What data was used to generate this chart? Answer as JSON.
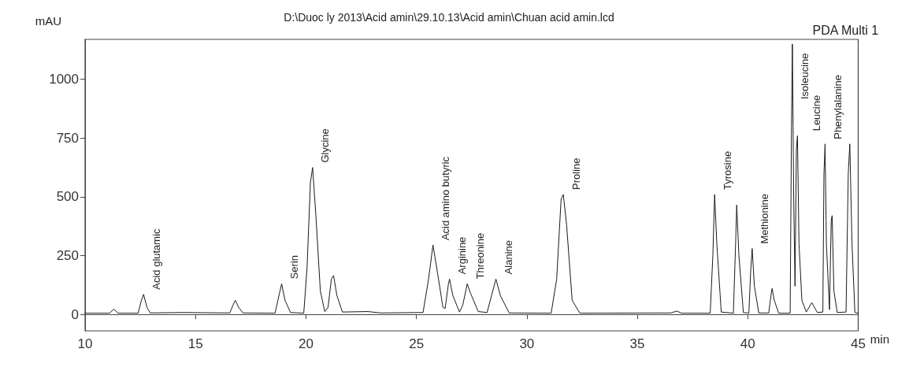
{
  "chart_data": {
    "type": "line",
    "title": "D:\\Duoc ly 2013\\Acid amin\\29.10.13\\Acid amin\\Chuan acid amin.lcd",
    "xlabel": "min",
    "ylabel": "mAU",
    "xlim": [
      10,
      45
    ],
    "xticks": [
      10,
      15,
      20,
      25,
      30,
      35,
      40,
      45
    ],
    "ylim": [
      -70,
      1170
    ],
    "yticks": [
      0,
      250,
      500,
      750,
      1000
    ],
    "marker": "none",
    "line_style": "solid",
    "series": [
      {
        "color": "#1a1a1a",
        "x": [
          10,
          11.1,
          11.3,
          11.5,
          12.4,
          12.55,
          12.65,
          12.8,
          12.95,
          14.4,
          16.55,
          16.7,
          16.8,
          16.95,
          17.15,
          18.6,
          18.8,
          18.9,
          19.05,
          19.3,
          19.9,
          20.05,
          20.2,
          20.3,
          20.45,
          20.65,
          20.85,
          21.0,
          21.15,
          21.25,
          21.4,
          21.65,
          22.8,
          23.4,
          25.3,
          25.55,
          25.75,
          25.95,
          26.2,
          26.3,
          26.45,
          26.5,
          26.65,
          26.95,
          27.1,
          27.3,
          27.45,
          27.8,
          28.2,
          28.4,
          28.6,
          28.8,
          29.2,
          31.1,
          31.35,
          31.55,
          31.65,
          31.8,
          32.05,
          32.4,
          36.5,
          36.8,
          37.0,
          38.3,
          38.42,
          38.5,
          38.6,
          38.8,
          39.35,
          39.45,
          39.5,
          39.6,
          39.8,
          40.05,
          40.13,
          40.2,
          40.3,
          40.5,
          40.95,
          41.05,
          41.1,
          41.2,
          41.4,
          41.92,
          41.98,
          42.02,
          42.08,
          42.14,
          42.2,
          42.25,
          42.32,
          42.45,
          42.65,
          42.9,
          43.15,
          43.4,
          43.45,
          43.5,
          43.56,
          43.7,
          43.78,
          43.82,
          43.9,
          44.05,
          44.45,
          44.55,
          44.62,
          44.72,
          44.85,
          45
        ],
        "values": [
          5,
          5,
          22,
          5,
          5,
          60,
          85,
          30,
          6,
          8,
          6,
          40,
          60,
          30,
          6,
          5,
          90,
          130,
          60,
          8,
          5,
          200,
          560,
          625,
          420,
          100,
          12,
          30,
          150,
          165,
          80,
          10,
          12,
          6,
          8,
          150,
          295,
          180,
          30,
          25,
          130,
          150,
          80,
          10,
          40,
          130,
          90,
          12,
          8,
          80,
          150,
          80,
          6,
          5,
          150,
          490,
          510,
          380,
          60,
          5,
          6,
          14,
          5,
          5,
          250,
          510,
          300,
          10,
          5,
          300,
          465,
          250,
          8,
          5,
          180,
          280,
          120,
          6,
          6,
          80,
          110,
          60,
          5,
          5,
          800,
          1150,
          500,
          120,
          700,
          760,
          300,
          60,
          10,
          50,
          8,
          10,
          600,
          725,
          300,
          20,
          400,
          420,
          100,
          8,
          10,
          600,
          725,
          300,
          8,
          5
        ]
      }
    ],
    "annotations": [
      {
        "text": "Acid glutamic",
        "x": 12.65,
        "y": 85
      },
      {
        "text": "Serin",
        "x": 18.9,
        "y": 130
      },
      {
        "text": "Glycine",
        "x": 20.3,
        "y": 625
      },
      {
        "text": "Acid amino butyric",
        "x": 25.75,
        "y": 295
      },
      {
        "text": "Arginine",
        "x": 26.5,
        "y": 150
      },
      {
        "text": "Threonine",
        "x": 27.3,
        "y": 130
      },
      {
        "text": "Alanine",
        "x": 28.6,
        "y": 150
      },
      {
        "text": "Proline",
        "x": 31.65,
        "y": 510
      },
      {
        "text": "Tyrosine",
        "x": 38.5,
        "y": 510
      },
      {
        "text": "Methionine",
        "x": 40.2,
        "y": 280
      },
      {
        "text": "Isoleucine",
        "x": 42.02,
        "y": 1150
      },
      {
        "text": "Leucine",
        "x": 42.25,
        "y": 760
      },
      {
        "text": "Phenylalanine",
        "x": 43.5,
        "y": 725
      },
      "PDA Multi 1"
    ]
  }
}
